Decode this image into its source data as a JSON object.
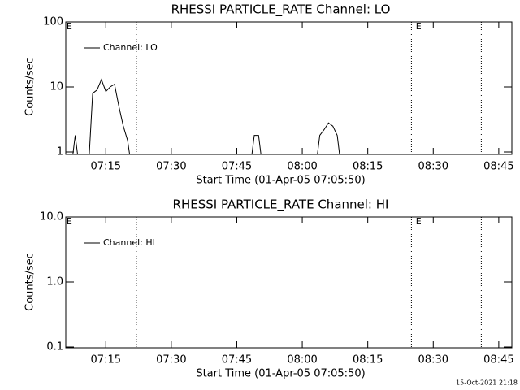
{
  "chart_data": [
    {
      "type": "line",
      "title": "RHESSI PARTICLE_RATE Channel: LO",
      "xlabel": "Start Time (01-Apr-05 07:05:50)",
      "ylabel": "Counts/sec",
      "log_y": true,
      "legend": "top-left",
      "xlim": [
        "07:05:50",
        "08:48"
      ],
      "xticks": [
        "07:15",
        "07:30",
        "07:45",
        "08:00",
        "08:15",
        "08:30",
        "08:45"
      ],
      "ylim": [
        1,
        100
      ],
      "yticks": [
        1,
        10,
        100
      ],
      "event_lines": [
        "07:22",
        "08:25",
        "08:41"
      ],
      "annotations": [
        {
          "x": "07:06",
          "text": "E"
        },
        {
          "x": "08:26",
          "text": "E"
        }
      ],
      "series": [
        {
          "name": "Channel: LO",
          "color": "#000000",
          "x": [
            "07:07",
            "07:08",
            "07:09",
            "07:11",
            "07:12",
            "07:13",
            "07:14",
            "07:15",
            "07:16",
            "07:17",
            "07:18",
            "07:19",
            "07:20",
            "07:21",
            "07:48",
            "07:49",
            "07:50",
            "07:51",
            "08:03",
            "08:04",
            "08:05",
            "08:06",
            "08:07",
            "08:08",
            "08:09"
          ],
          "values": [
            0,
            1.8,
            0,
            0,
            8,
            9,
            13,
            8.5,
            10,
            11,
            5,
            2.5,
            1.5,
            0,
            0,
            1.8,
            1.8,
            0,
            0,
            1.8,
            2.2,
            2.8,
            2.5,
            1.8,
            0
          ]
        }
      ]
    },
    {
      "type": "line",
      "title": "RHESSI PARTICLE_RATE Channel: HI",
      "xlabel": "Start Time (01-Apr-05 07:05:50)",
      "ylabel": "Counts/sec",
      "log_y": true,
      "legend": "top-left",
      "xlim": [
        "07:05:50",
        "08:48"
      ],
      "xticks": [
        "07:15",
        "07:30",
        "07:45",
        "08:00",
        "08:15",
        "08:30",
        "08:45"
      ],
      "ylim": [
        0.1,
        10
      ],
      "yticks": [
        0.1,
        {
          "value": 1,
          "label": "1.0"
        },
        {
          "value": 10,
          "label": "10.0"
        }
      ],
      "event_lines": [
        "07:22",
        "08:25",
        "08:41"
      ],
      "annotations": [
        {
          "x": "07:06",
          "text": "E"
        },
        {
          "x": "08:26",
          "text": "E"
        }
      ],
      "series": [
        {
          "name": "Channel: HI",
          "color": "#000000",
          "x": [],
          "values": []
        }
      ]
    }
  ],
  "footer": "15-Oct-2021 21:18"
}
